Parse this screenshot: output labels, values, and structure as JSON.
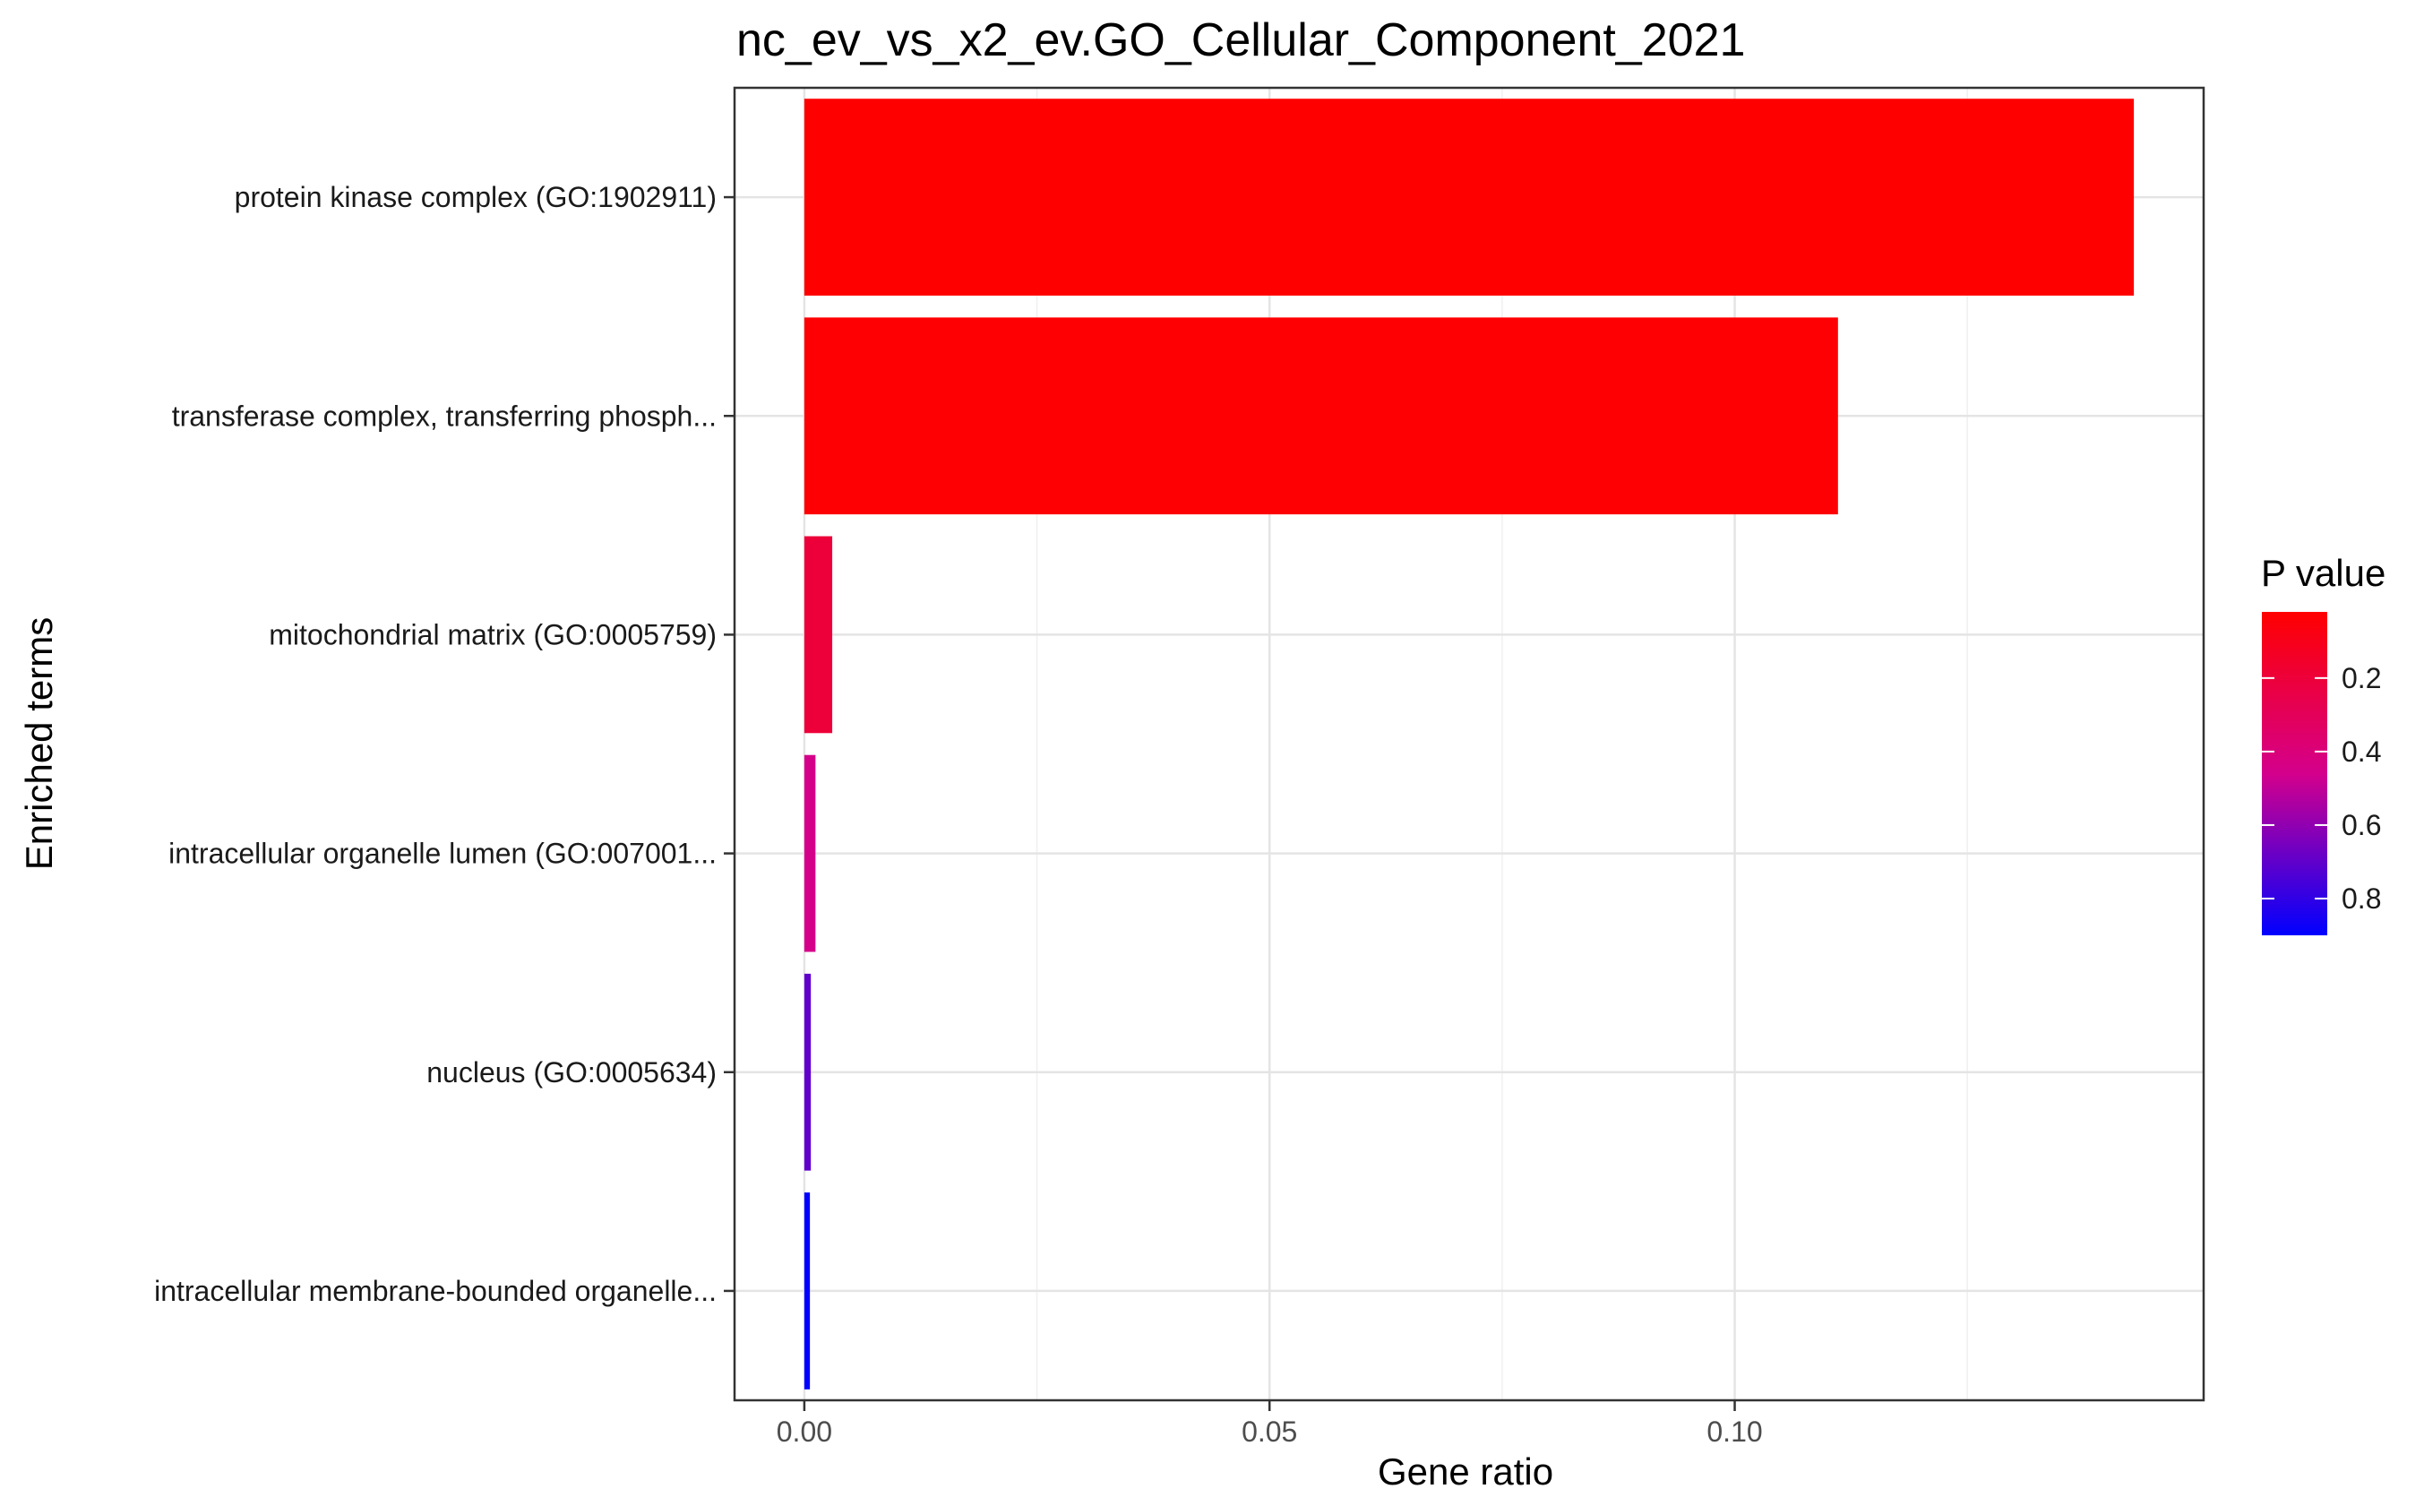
{
  "chart_data": {
    "type": "bar",
    "orientation": "horizontal",
    "title": "nc_ev_vs_x2_ev.GO_Cellular_Component_2021",
    "xlabel": "Gene ratio",
    "ylabel": "Enriched terms",
    "xlim": [
      -0.0075,
      0.1504
    ],
    "x_ticks": [
      0.0,
      0.05,
      0.1
    ],
    "x_tick_labels": [
      "0.00",
      "0.05",
      "0.10"
    ],
    "grid": true,
    "categories": [
      "protein kinase complex (GO:1902911)",
      "transferase complex, transferring phosph...",
      "mitochondrial matrix (GO:0005759)",
      "intracellular organelle lumen (GO:007001...",
      "nucleus (GO:0005634)",
      "intracellular membrane-bounded organelle..."
    ],
    "series": [
      {
        "values": [
          0.1429,
          0.1111,
          0.003,
          0.0012,
          0.0007,
          0.0006
        ],
        "p_values": [
          0.02,
          0.03,
          0.2,
          0.45,
          0.7,
          0.9
        ]
      }
    ],
    "legend": {
      "title": "P value",
      "placement": "right",
      "type": "colorbar",
      "ticks": [
        0.2,
        0.4,
        0.6,
        0.8
      ],
      "tick_labels": [
        "0.2",
        "0.4",
        "0.6",
        "0.8"
      ],
      "range": [
        0.02,
        0.9
      ],
      "low_color": "#FF0000",
      "high_color": "#0000FF"
    }
  }
}
